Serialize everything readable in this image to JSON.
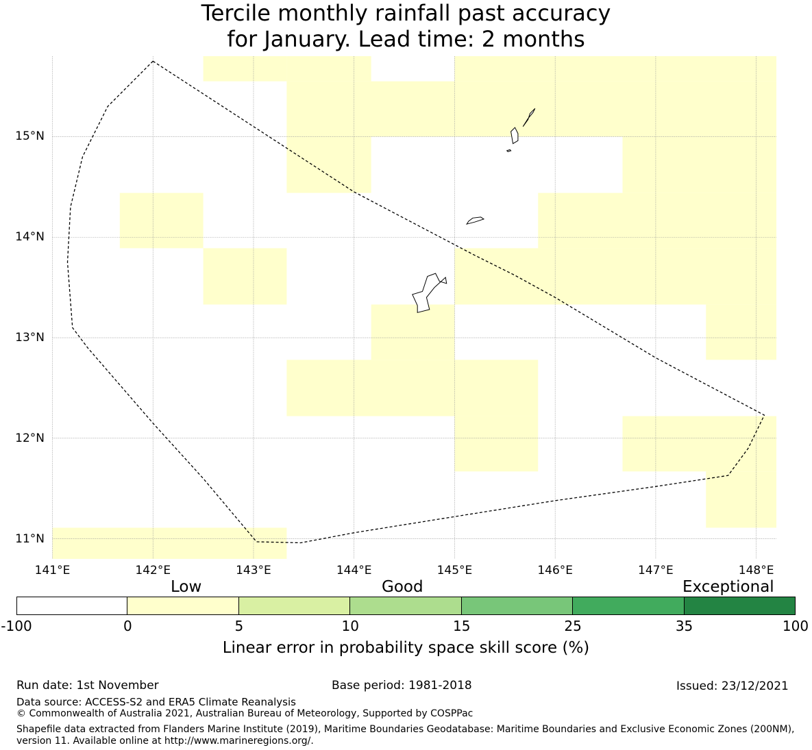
{
  "title": {
    "line1": "Tercile monthly rainfall past accuracy",
    "line2": "for January. Lead time: 2 months"
  },
  "map": {
    "extent": {
      "lon_min": 141.0,
      "lon_max": 148.2,
      "lat_min": 10.8,
      "lat_max": 15.8
    },
    "lon_ticks": [
      141,
      142,
      143,
      144,
      145,
      146,
      147,
      148
    ],
    "lon_tick_labels": [
      "141°E",
      "142°E",
      "143°E",
      "144°E",
      "145°E",
      "146°E",
      "147°E",
      "148°E"
    ],
    "lat_ticks": [
      11,
      12,
      13,
      14,
      15
    ],
    "lat_tick_labels": [
      "11°N",
      "12°N",
      "13°N",
      "14°N",
      "15°N"
    ],
    "skill_cells_low": [
      [
        142.5,
        15.55,
        143.33,
        15.8
      ],
      [
        143.33,
        15.55,
        144.17,
        15.8
      ],
      [
        145.0,
        15.55,
        148.2,
        15.8
      ],
      [
        143.33,
        15.0,
        145.0,
        15.55
      ],
      [
        145.0,
        15.0,
        148.2,
        15.55
      ],
      [
        143.33,
        14.44,
        144.17,
        15.0
      ],
      [
        146.67,
        14.44,
        148.2,
        15.0
      ],
      [
        141.67,
        13.89,
        142.5,
        14.44
      ],
      [
        145.83,
        13.89,
        148.2,
        14.44
      ],
      [
        142.5,
        13.33,
        143.33,
        13.89
      ],
      [
        145.0,
        13.33,
        148.2,
        13.89
      ],
      [
        144.17,
        12.78,
        145.0,
        13.33
      ],
      [
        147.5,
        12.78,
        148.2,
        13.33
      ],
      [
        143.33,
        12.22,
        145.83,
        12.78
      ],
      [
        145.0,
        11.67,
        145.83,
        12.22
      ],
      [
        146.67,
        11.67,
        148.2,
        12.22
      ],
      [
        147.5,
        11.11,
        148.2,
        11.67
      ],
      [
        141.0,
        10.8,
        143.33,
        11.11
      ]
    ],
    "eez_boundary": [
      [
        142.0,
        15.75
      ],
      [
        141.55,
        15.3
      ],
      [
        141.3,
        14.8
      ],
      [
        141.18,
        14.3
      ],
      [
        141.15,
        13.75
      ],
      [
        141.2,
        13.1
      ],
      [
        141.35,
        12.9
      ],
      [
        142.0,
        12.15
      ],
      [
        142.5,
        11.6
      ],
      [
        143.03,
        10.97
      ],
      [
        143.47,
        10.96
      ],
      [
        144.0,
        11.06
      ],
      [
        145.0,
        11.22
      ],
      [
        146.0,
        11.38
      ],
      [
        147.0,
        11.52
      ],
      [
        147.72,
        11.63
      ],
      [
        147.92,
        11.9
      ],
      [
        148.08,
        12.23
      ],
      [
        147.0,
        12.8
      ],
      [
        146.0,
        13.4
      ],
      [
        145.6,
        13.62
      ],
      [
        145.2,
        13.82
      ],
      [
        144.0,
        14.45
      ],
      [
        143.0,
        15.1
      ],
      [
        142.0,
        15.75
      ]
    ],
    "islands": {
      "guam": [
        [
          144.63,
          13.25
        ],
        [
          144.75,
          13.28
        ],
        [
          144.72,
          13.4
        ],
        [
          144.8,
          13.5
        ],
        [
          144.91,
          13.6
        ],
        [
          144.92,
          13.54
        ],
        [
          144.85,
          13.56
        ],
        [
          144.81,
          13.64
        ],
        [
          144.73,
          13.61
        ],
        [
          144.68,
          13.46
        ],
        [
          144.58,
          13.43
        ],
        [
          144.63,
          13.32
        ]
      ],
      "rota": [
        [
          145.12,
          14.13
        ],
        [
          145.2,
          14.15
        ],
        [
          145.29,
          14.18
        ],
        [
          145.26,
          14.2
        ],
        [
          145.18,
          14.19
        ],
        [
          145.14,
          14.16
        ]
      ],
      "saipan": [
        [
          145.68,
          15.1
        ],
        [
          145.73,
          15.17
        ],
        [
          145.75,
          15.23
        ],
        [
          145.8,
          15.28
        ],
        [
          145.78,
          15.24
        ],
        [
          145.73,
          15.18
        ]
      ],
      "tinian": [
        [
          145.58,
          14.93
        ],
        [
          145.63,
          14.96
        ],
        [
          145.63,
          15.03
        ],
        [
          145.6,
          15.09
        ],
        [
          145.56,
          15.05
        ],
        [
          145.57,
          14.99
        ]
      ],
      "aguijan": [
        [
          145.53,
          14.85
        ],
        [
          145.56,
          14.86
        ],
        [
          145.55,
          14.87
        ],
        [
          145.52,
          14.86
        ]
      ]
    }
  },
  "legend": {
    "category_low": "Low",
    "category_good": "Good",
    "category_exceptional": "Exceptional",
    "bins": [
      "-100",
      "0",
      "5",
      "10",
      "15",
      "25",
      "35",
      "100"
    ],
    "colors": [
      "#ffffff",
      "#ffffcc",
      "#d9f0a3",
      "#addd8e",
      "#78c679",
      "#41ab5d",
      "#238443"
    ],
    "title": "Linear error in probability space skill score (%)"
  },
  "footer": {
    "run_date": "Run date: 1st November",
    "base_period": "Base period: 1981-2018",
    "issued": "Issued: 23/12/2021",
    "data_source": "Data source: ACCESS-S2 and ERA5 Climate Reanalysis",
    "copyright": "© Commonwealth of Australia 2021, Australian Bureau of Meteorology, Supported by COSPPac",
    "shapefile": "Shapefile data extracted from Flanders Marine Institute (2019), Maritime Boundaries Geodatabase: Maritime Boundaries and Exclusive Economic Zones (200NM), version 11. Available online at http://www.marineregions.org/."
  }
}
